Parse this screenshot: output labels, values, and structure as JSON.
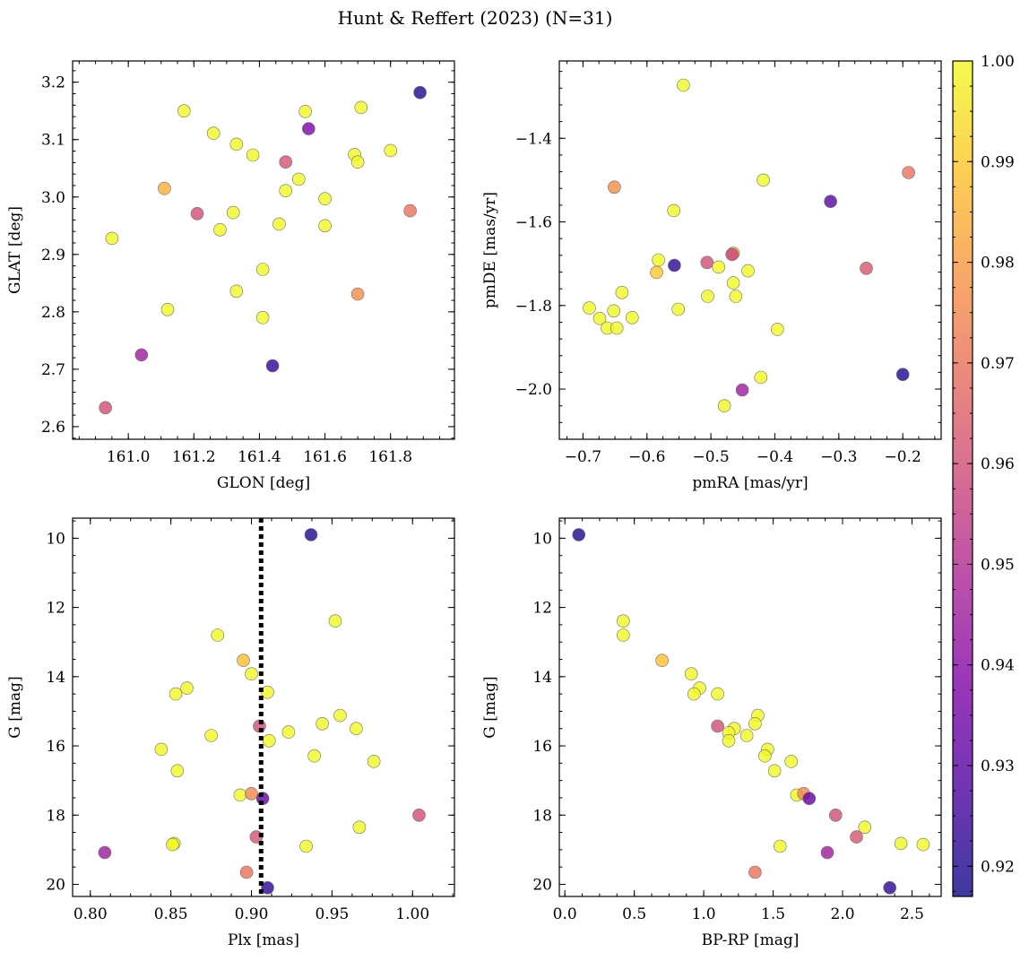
{
  "figure": {
    "title": "Hunt & Reffert (2023) (N=31)",
    "colormap": "plasma",
    "marker_alpha": 0.8
  },
  "colorbar": {
    "vmin": 0.917,
    "vmax": 1.0,
    "ticks": [
      0.92,
      0.93,
      0.94,
      0.95,
      0.96,
      0.97,
      0.98,
      0.99,
      1.0
    ],
    "tick_labels": [
      "0.92",
      "0.93",
      "0.94",
      "0.95",
      "0.96",
      "0.97",
      "0.98",
      "0.99",
      "1.00"
    ]
  },
  "chart_data": [
    {
      "type": "scatter",
      "xlabel": "GLON [deg]",
      "ylabel": "GLAT [deg]",
      "xlim": [
        160.83,
        161.995
      ],
      "ylim": [
        2.578,
        3.237
      ],
      "invert_y": false,
      "xticks": [
        161.0,
        161.2,
        161.4,
        161.6,
        161.8
      ],
      "xtick_labels": [
        "161.0",
        "161.2",
        "161.4",
        "161.6",
        "161.8"
      ],
      "yticks": [
        2.6,
        2.7,
        2.8,
        2.9,
        3.0,
        3.1,
        3.2
      ],
      "ytick_labels": [
        "2.6",
        "2.7",
        "2.8",
        "2.9",
        "3.0",
        "3.1",
        "3.2"
      ],
      "points": [
        {
          "x": 161.17,
          "y": 3.15,
          "c": 1.0
        },
        {
          "x": 161.26,
          "y": 3.111,
          "c": 1.0
        },
        {
          "x": 161.33,
          "y": 3.092,
          "c": 1.0
        },
        {
          "x": 161.38,
          "y": 3.073,
          "c": 1.0
        },
        {
          "x": 161.48,
          "y": 3.061,
          "c": 0.962
        },
        {
          "x": 161.54,
          "y": 3.149,
          "c": 1.0
        },
        {
          "x": 161.55,
          "y": 3.119,
          "c": 0.937
        },
        {
          "x": 161.71,
          "y": 3.156,
          "c": 1.0
        },
        {
          "x": 161.89,
          "y": 3.182,
          "c": 0.92
        },
        {
          "x": 161.69,
          "y": 3.074,
          "c": 1.0
        },
        {
          "x": 161.7,
          "y": 3.061,
          "c": 1.0
        },
        {
          "x": 161.8,
          "y": 3.081,
          "c": 1.0
        },
        {
          "x": 161.11,
          "y": 3.015,
          "c": 0.985
        },
        {
          "x": 161.21,
          "y": 2.971,
          "c": 0.96
        },
        {
          "x": 161.32,
          "y": 2.973,
          "c": 1.0
        },
        {
          "x": 161.28,
          "y": 2.943,
          "c": 1.0
        },
        {
          "x": 161.48,
          "y": 3.011,
          "c": 1.0
        },
        {
          "x": 161.52,
          "y": 3.031,
          "c": 1.0
        },
        {
          "x": 161.46,
          "y": 2.953,
          "c": 1.0
        },
        {
          "x": 161.6,
          "y": 2.997,
          "c": 1.0
        },
        {
          "x": 161.6,
          "y": 2.95,
          "c": 1.0
        },
        {
          "x": 161.86,
          "y": 2.976,
          "c": 0.97
        },
        {
          "x": 160.95,
          "y": 2.928,
          "c": 1.0
        },
        {
          "x": 161.41,
          "y": 2.874,
          "c": 1.0
        },
        {
          "x": 161.33,
          "y": 2.836,
          "c": 1.0
        },
        {
          "x": 161.12,
          "y": 2.804,
          "c": 1.0
        },
        {
          "x": 161.41,
          "y": 2.79,
          "c": 1.0
        },
        {
          "x": 161.7,
          "y": 2.831,
          "c": 0.977
        },
        {
          "x": 161.04,
          "y": 2.725,
          "c": 0.945
        },
        {
          "x": 161.44,
          "y": 2.706,
          "c": 0.922
        },
        {
          "x": 160.93,
          "y": 2.633,
          "c": 0.96
        }
      ]
    },
    {
      "type": "scatter",
      "xlabel": "pmRA [mas/yr]",
      "ylabel": "pmDE [mas/yr]",
      "xlim": [
        -0.737,
        -0.14
      ],
      "ylim": [
        -2.12,
        -1.215
      ],
      "invert_y": false,
      "xticks": [
        -0.7,
        -0.6,
        -0.5,
        -0.4,
        -0.3,
        -0.2
      ],
      "xtick_labels": [
        "−0.7",
        "−0.6",
        "−0.5",
        "−0.4",
        "−0.3",
        "−0.2"
      ],
      "yticks": [
        -2.0,
        -1.8,
        -1.6,
        -1.4
      ],
      "ytick_labels": [
        "−2.0",
        "−1.8",
        "−1.6",
        "−1.4"
      ],
      "points": [
        {
          "x": -0.543,
          "y": -1.273,
          "c": 1.0
        },
        {
          "x": -0.651,
          "y": -1.517,
          "c": 0.977
        },
        {
          "x": -0.418,
          "y": -1.5,
          "c": 1.0
        },
        {
          "x": -0.191,
          "y": -1.482,
          "c": 0.97
        },
        {
          "x": -0.313,
          "y": -1.551,
          "c": 0.93
        },
        {
          "x": -0.558,
          "y": -1.573,
          "c": 1.0
        },
        {
          "x": -0.582,
          "y": -1.691,
          "c": 1.0
        },
        {
          "x": -0.557,
          "y": -1.704,
          "c": 0.922
        },
        {
          "x": -0.585,
          "y": -1.721,
          "c": 0.99
        },
        {
          "x": -0.506,
          "y": -1.697,
          "c": 0.96
        },
        {
          "x": -0.488,
          "y": -1.708,
          "c": 1.0
        },
        {
          "x": -0.465,
          "y": -1.675,
          "c": 0.985
        },
        {
          "x": -0.467,
          "y": -1.678,
          "c": 0.957
        },
        {
          "x": -0.442,
          "y": -1.717,
          "c": 1.0
        },
        {
          "x": -0.465,
          "y": -1.746,
          "c": 1.0
        },
        {
          "x": -0.461,
          "y": -1.778,
          "c": 1.0
        },
        {
          "x": -0.505,
          "y": -1.778,
          "c": 1.0
        },
        {
          "x": -0.257,
          "y": -1.711,
          "c": 0.963
        },
        {
          "x": -0.639,
          "y": -1.769,
          "c": 1.0
        },
        {
          "x": -0.69,
          "y": -1.806,
          "c": 1.0
        },
        {
          "x": -0.652,
          "y": -1.813,
          "c": 1.0
        },
        {
          "x": -0.674,
          "y": -1.831,
          "c": 1.0
        },
        {
          "x": -0.623,
          "y": -1.829,
          "c": 1.0
        },
        {
          "x": -0.551,
          "y": -1.809,
          "c": 1.0
        },
        {
          "x": -0.662,
          "y": -1.854,
          "c": 1.0
        },
        {
          "x": -0.647,
          "y": -1.854,
          "c": 1.0
        },
        {
          "x": -0.396,
          "y": -1.857,
          "c": 1.0
        },
        {
          "x": -0.422,
          "y": -1.972,
          "c": 1.0
        },
        {
          "x": -0.2,
          "y": -1.965,
          "c": 0.92
        },
        {
          "x": -0.451,
          "y": -2.002,
          "c": 0.945
        },
        {
          "x": -0.479,
          "y": -2.04,
          "c": 1.0
        }
      ]
    },
    {
      "type": "scatter",
      "xlabel": "Plx [mas]",
      "ylabel": "G [mag]",
      "xlim": [
        0.789,
        1.026
      ],
      "ylim": [
        9.42,
        20.35
      ],
      "invert_y": true,
      "vline_x": 0.906,
      "xticks": [
        0.8,
        0.85,
        0.9,
        0.95,
        1.0
      ],
      "xtick_labels": [
        "0.80",
        "0.85",
        "0.90",
        "0.95",
        "1.00"
      ],
      "yticks": [
        10,
        12,
        14,
        16,
        18,
        20
      ],
      "ytick_labels": [
        "10",
        "12",
        "14",
        "16",
        "18",
        "20"
      ],
      "points": [
        {
          "x": 0.937,
          "y": 9.9,
          "c": 0.92
        },
        {
          "x": 0.952,
          "y": 12.39,
          "c": 1.0
        },
        {
          "x": 0.879,
          "y": 12.8,
          "c": 1.0
        },
        {
          "x": 0.895,
          "y": 13.53,
          "c": 0.988
        },
        {
          "x": 0.9,
          "y": 13.92,
          "c": 1.0
        },
        {
          "x": 0.86,
          "y": 14.33,
          "c": 1.0
        },
        {
          "x": 0.853,
          "y": 14.5,
          "c": 1.0
        },
        {
          "x": 0.91,
          "y": 14.45,
          "c": 1.0
        },
        {
          "x": 0.955,
          "y": 15.12,
          "c": 1.0
        },
        {
          "x": 0.944,
          "y": 15.36,
          "c": 1.0
        },
        {
          "x": 0.905,
          "y": 15.43,
          "c": 0.96
        },
        {
          "x": 0.965,
          "y": 15.5,
          "c": 1.0
        },
        {
          "x": 0.923,
          "y": 15.6,
          "c": 1.0
        },
        {
          "x": 0.875,
          "y": 15.7,
          "c": 1.0
        },
        {
          "x": 0.911,
          "y": 15.85,
          "c": 1.0
        },
        {
          "x": 0.844,
          "y": 16.1,
          "c": 1.0
        },
        {
          "x": 0.939,
          "y": 16.29,
          "c": 1.0
        },
        {
          "x": 0.976,
          "y": 16.45,
          "c": 1.0
        },
        {
          "x": 0.854,
          "y": 16.72,
          "c": 1.0
        },
        {
          "x": 0.893,
          "y": 17.42,
          "c": 1.0
        },
        {
          "x": 0.9,
          "y": 17.38,
          "c": 0.975
        },
        {
          "x": 0.907,
          "y": 17.52,
          "c": 0.932
        },
        {
          "x": 1.004,
          "y": 18.0,
          "c": 0.96
        },
        {
          "x": 0.967,
          "y": 18.35,
          "c": 1.0
        },
        {
          "x": 0.903,
          "y": 18.63,
          "c": 0.962
        },
        {
          "x": 0.852,
          "y": 18.82,
          "c": 1.0
        },
        {
          "x": 0.851,
          "y": 18.85,
          "c": 1.0
        },
        {
          "x": 0.934,
          "y": 18.9,
          "c": 1.0
        },
        {
          "x": 0.809,
          "y": 19.08,
          "c": 0.945
        },
        {
          "x": 0.897,
          "y": 19.65,
          "c": 0.97
        },
        {
          "x": 0.91,
          "y": 20.1,
          "c": 0.922
        }
      ]
    },
    {
      "type": "scatter",
      "xlabel": "BP-RP [mag]",
      "ylabel": "G [mag]",
      "xlim": [
        -0.04,
        2.71
      ],
      "ylim": [
        9.42,
        20.35
      ],
      "invert_y": true,
      "xticks": [
        0.0,
        0.5,
        1.0,
        1.5,
        2.0,
        2.5
      ],
      "xtick_labels": [
        "0.0",
        "0.5",
        "1.0",
        "1.5",
        "2.0",
        "2.5"
      ],
      "yticks": [
        10,
        12,
        14,
        16,
        18,
        20
      ],
      "ytick_labels": [
        "10",
        "12",
        "14",
        "16",
        "18",
        "20"
      ],
      "points": [
        {
          "x": 0.1,
          "y": 9.9,
          "c": 0.92
        },
        {
          "x": 0.42,
          "y": 12.39,
          "c": 1.0
        },
        {
          "x": 0.42,
          "y": 12.8,
          "c": 1.0
        },
        {
          "x": 0.7,
          "y": 13.53,
          "c": 0.988
        },
        {
          "x": 0.91,
          "y": 13.92,
          "c": 1.0
        },
        {
          "x": 0.97,
          "y": 14.33,
          "c": 1.0
        },
        {
          "x": 0.93,
          "y": 14.5,
          "c": 1.0
        },
        {
          "x": 1.1,
          "y": 14.5,
          "c": 1.0
        },
        {
          "x": 1.39,
          "y": 15.12,
          "c": 1.0
        },
        {
          "x": 1.37,
          "y": 15.36,
          "c": 1.0
        },
        {
          "x": 1.1,
          "y": 15.43,
          "c": 0.96
        },
        {
          "x": 1.22,
          "y": 15.5,
          "c": 1.0
        },
        {
          "x": 1.18,
          "y": 15.62,
          "c": 1.0
        },
        {
          "x": 1.31,
          "y": 15.7,
          "c": 1.0
        },
        {
          "x": 1.18,
          "y": 15.85,
          "c": 1.0
        },
        {
          "x": 1.46,
          "y": 16.1,
          "c": 1.0
        },
        {
          "x": 1.44,
          "y": 16.29,
          "c": 1.0
        },
        {
          "x": 1.63,
          "y": 16.45,
          "c": 1.0
        },
        {
          "x": 1.51,
          "y": 16.72,
          "c": 1.0
        },
        {
          "x": 1.67,
          "y": 17.42,
          "c": 1.0
        },
        {
          "x": 1.72,
          "y": 17.38,
          "c": 0.975
        },
        {
          "x": 1.76,
          "y": 17.52,
          "c": 0.932
        },
        {
          "x": 1.95,
          "y": 18.0,
          "c": 0.96
        },
        {
          "x": 2.16,
          "y": 18.35,
          "c": 1.0
        },
        {
          "x": 2.1,
          "y": 18.63,
          "c": 0.962
        },
        {
          "x": 2.42,
          "y": 18.82,
          "c": 1.0
        },
        {
          "x": 2.58,
          "y": 18.85,
          "c": 1.0
        },
        {
          "x": 1.55,
          "y": 18.9,
          "c": 1.0
        },
        {
          "x": 1.89,
          "y": 19.08,
          "c": 0.945
        },
        {
          "x": 1.37,
          "y": 19.65,
          "c": 0.97
        },
        {
          "x": 2.34,
          "y": 20.1,
          "c": 0.922
        }
      ]
    }
  ]
}
